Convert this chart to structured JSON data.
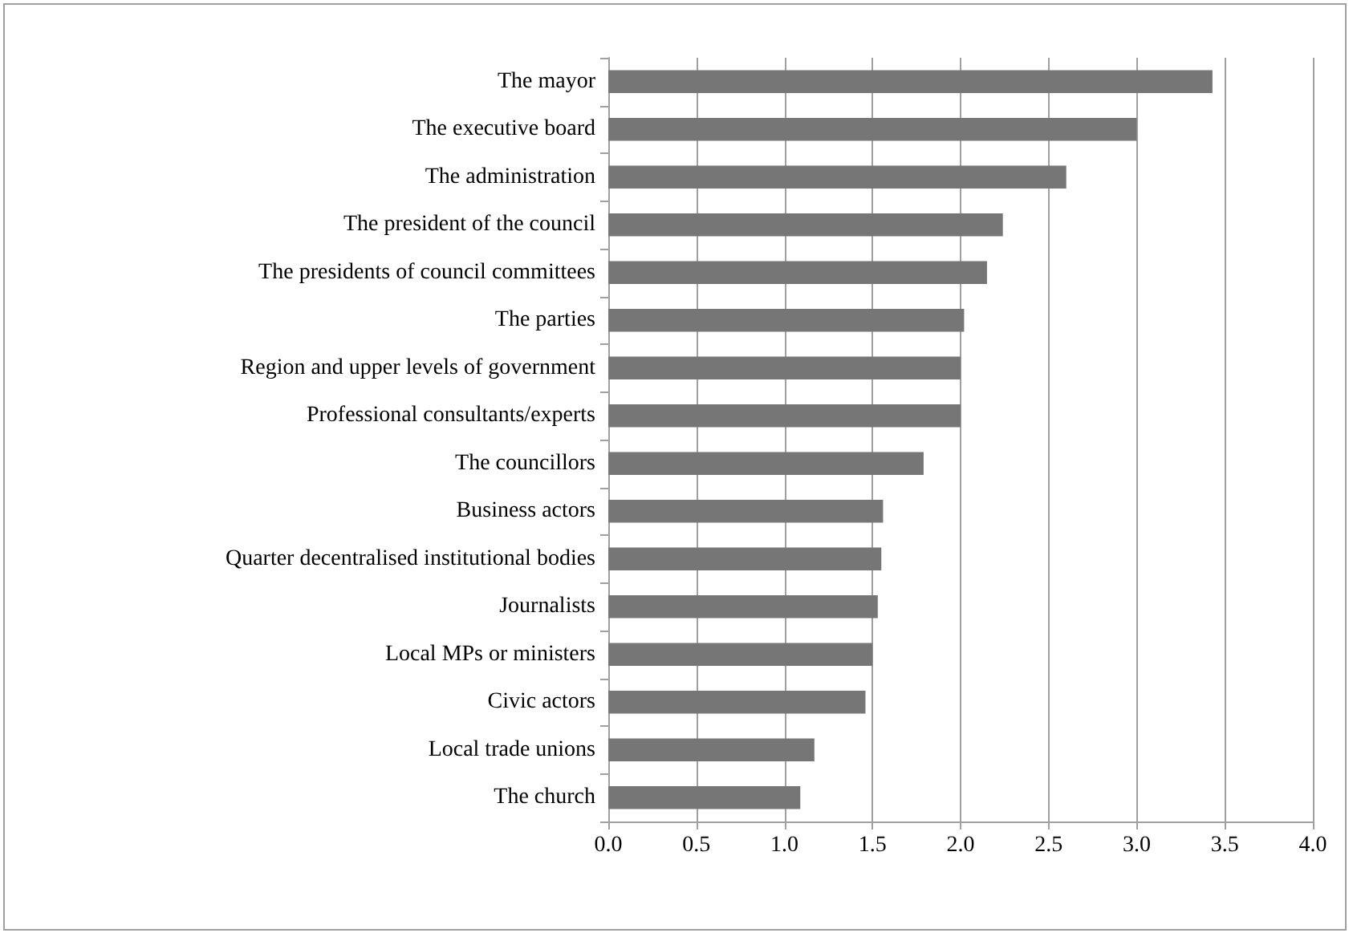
{
  "chart_data": {
    "type": "bar",
    "orientation": "horizontal",
    "categories": [
      "The mayor",
      "The executive board",
      "The administration",
      "The president of the council",
      "The presidents of council committees",
      "The parties",
      "Region and upper levels of government",
      "Professional consultants/experts",
      "The councillors",
      "Business actors",
      "Quarter decentralised institutional bodies",
      "Journalists",
      "Local MPs or ministers",
      "Civic actors",
      "Local trade unions",
      "The church"
    ],
    "values": [
      3.43,
      3.0,
      2.6,
      2.24,
      2.15,
      2.02,
      2.0,
      2.0,
      1.79,
      1.56,
      1.55,
      1.53,
      1.5,
      1.46,
      1.17,
      1.09
    ],
    "color": "#767676",
    "xlim": [
      0,
      4
    ],
    "xticks": [
      {
        "value": 0,
        "label": "0.0"
      },
      {
        "value": 0.5,
        "label": "0.5"
      },
      {
        "value": 1,
        "label": "1.0"
      },
      {
        "value": 1.5,
        "label": "1.5"
      },
      {
        "value": 2,
        "label": "2.0"
      },
      {
        "value": 2.5,
        "label": "2.5"
      },
      {
        "value": 3,
        "label": "3.0"
      },
      {
        "value": 3.5,
        "label": "3.5"
      },
      {
        "value": 4,
        "label": "4.0"
      }
    ],
    "grid": "x"
  }
}
